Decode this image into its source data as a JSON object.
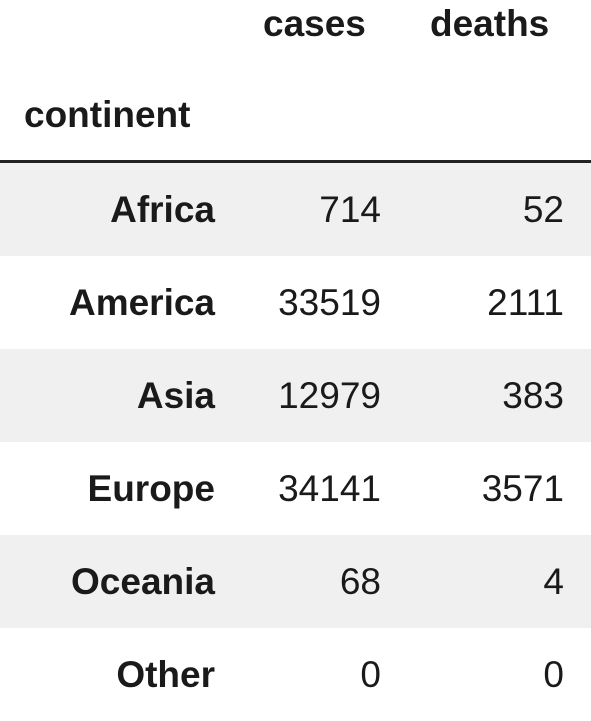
{
  "table": {
    "columns": [
      "cases",
      "deaths"
    ],
    "index_name": "continent",
    "rows": [
      {
        "continent": "Africa",
        "cases": "714",
        "deaths": "52"
      },
      {
        "continent": "America",
        "cases": "33519",
        "deaths": "2111"
      },
      {
        "continent": "Asia",
        "cases": "12979",
        "deaths": "383"
      },
      {
        "continent": "Europe",
        "cases": "34141",
        "deaths": "3571"
      },
      {
        "continent": "Oceania",
        "cases": "68",
        "deaths": "4"
      },
      {
        "continent": "Other",
        "cases": "0",
        "deaths": "0"
      }
    ]
  },
  "colors": {
    "stripe": "#f0f0f0",
    "text": "#1a1a1a",
    "rule": "#222222"
  }
}
